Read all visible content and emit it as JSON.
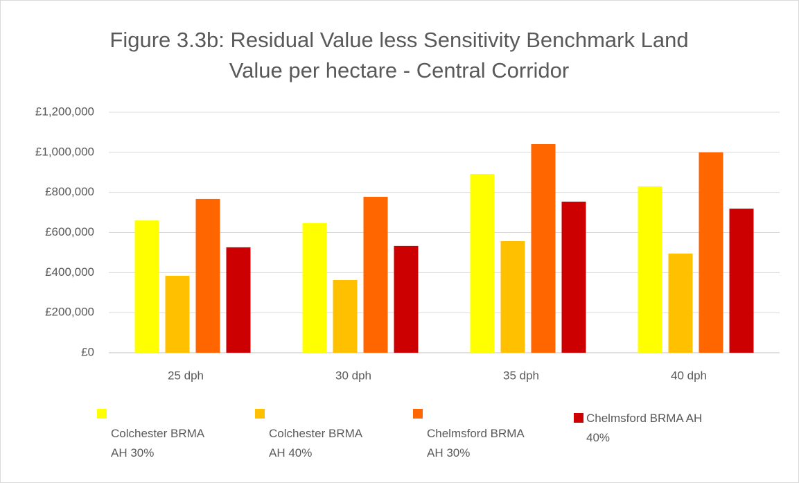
{
  "chart_data": {
    "type": "bar",
    "title": "Figure 3.3b: Residual Value less Sensitivity Benchmark Land Value per hectare - Central Corridor",
    "categories": [
      "25 dph",
      "30 dph",
      "35 dph",
      "40 dph"
    ],
    "series": [
      {
        "name": "Colchester BRMA AH 30%",
        "color": "#ffff00",
        "values": [
          660000,
          647000,
          892000,
          830000
        ]
      },
      {
        "name": "Colchester BRMA AH 40%",
        "color": "#ffc000",
        "values": [
          384000,
          363000,
          557000,
          495000
        ]
      },
      {
        "name": "Chelmsford BRMA AH 30%",
        "color": "#ff6600",
        "values": [
          768000,
          778000,
          1041000,
          1000000
        ]
      },
      {
        "name": "Chelmsford BRMA AH 40%",
        "color": "#cc0000",
        "values": [
          526000,
          533000,
          754000,
          719000
        ]
      }
    ],
    "ylim": [
      0,
      1200000
    ],
    "yticks": [
      {
        "value": 0,
        "label": "£0"
      },
      {
        "value": 200000,
        "label": "£200,000"
      },
      {
        "value": 400000,
        "label": "£400,000"
      },
      {
        "value": 600000,
        "label": "£600,000"
      },
      {
        "value": 800000,
        "label": "£800,000"
      },
      {
        "value": 1000000,
        "label": "£1,000,000"
      },
      {
        "value": 1200000,
        "label": "£1,200,000"
      }
    ],
    "grid": true,
    "legend": "bottom"
  }
}
